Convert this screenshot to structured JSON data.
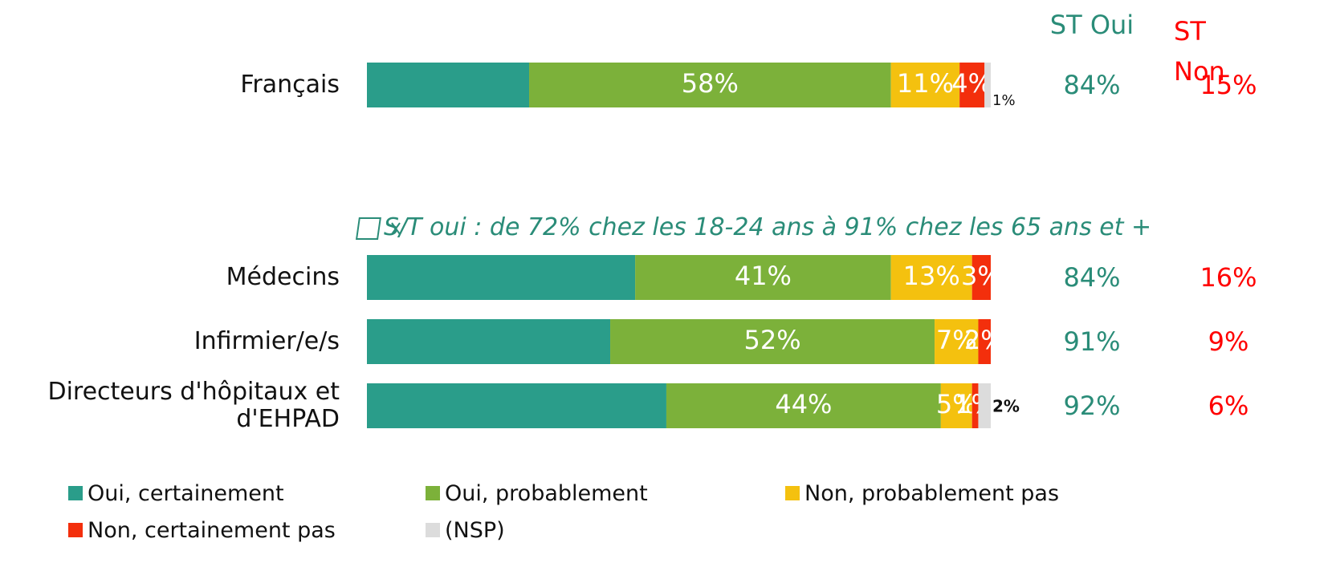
{
  "chart_data": {
    "type": "stacked_bar",
    "categories": [
      "Français",
      "Médecins",
      "Infirmier/e/s",
      "Directeurs d'hôpitaux et d'EHPAD"
    ],
    "xlim": [
      0,
      100
    ],
    "series": [
      {
        "name": "Oui, certainement",
        "color": "#2a9d8a",
        "values": [
          26,
          43,
          39,
          48
        ],
        "show_labels": false
      },
      {
        "name": "Oui, probablement",
        "color": "#7cb13a",
        "values": [
          58,
          41,
          52,
          44
        ]
      },
      {
        "name": "Non, probablement pas",
        "color": "#f4c10f",
        "values": [
          11,
          13,
          7,
          5
        ]
      },
      {
        "name": "Non, certainement pas",
        "color": "#f32f0c",
        "values": [
          4,
          3,
          2,
          1
        ]
      },
      {
        "name": "(NSP)",
        "color": "#dcdcdc",
        "values": [
          1,
          null,
          null,
          2
        ],
        "label_outside": true
      }
    ],
    "st_oui": {
      "label": "ST Oui",
      "color": "#2a8c78",
      "values": [
        84,
        84,
        91,
        92
      ]
    },
    "st_non": {
      "label": "ST Non",
      "color": "#ff0000",
      "values": [
        15,
        16,
        9,
        6
      ]
    },
    "annotation": "S/T oui : de 72% chez les 18-24 ans à 91% chez les 65 ans et +"
  }
}
